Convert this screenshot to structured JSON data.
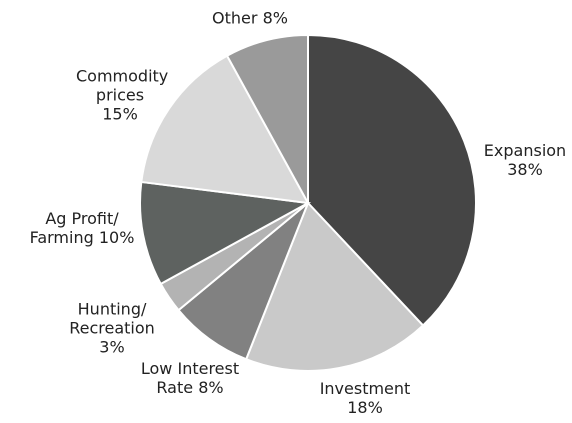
{
  "chart_data": {
    "type": "pie",
    "categories": [
      "Expansion",
      "Investment",
      "Low Interest Rate",
      "Hunting/ Recreation",
      "Ag Profit/ Farming",
      "Commodity prices",
      "Other"
    ],
    "values": [
      38,
      18,
      8,
      3,
      10,
      15,
      8
    ],
    "value_labels": [
      "38%",
      "18%",
      "8%",
      "3%",
      "10%",
      "15%",
      "8%"
    ],
    "colors": [
      "#454545",
      "#c9c9c9",
      "#818181",
      "#b3b3b3",
      "#5e6260",
      "#d9d9d9",
      "#9a9a9a"
    ]
  }
}
